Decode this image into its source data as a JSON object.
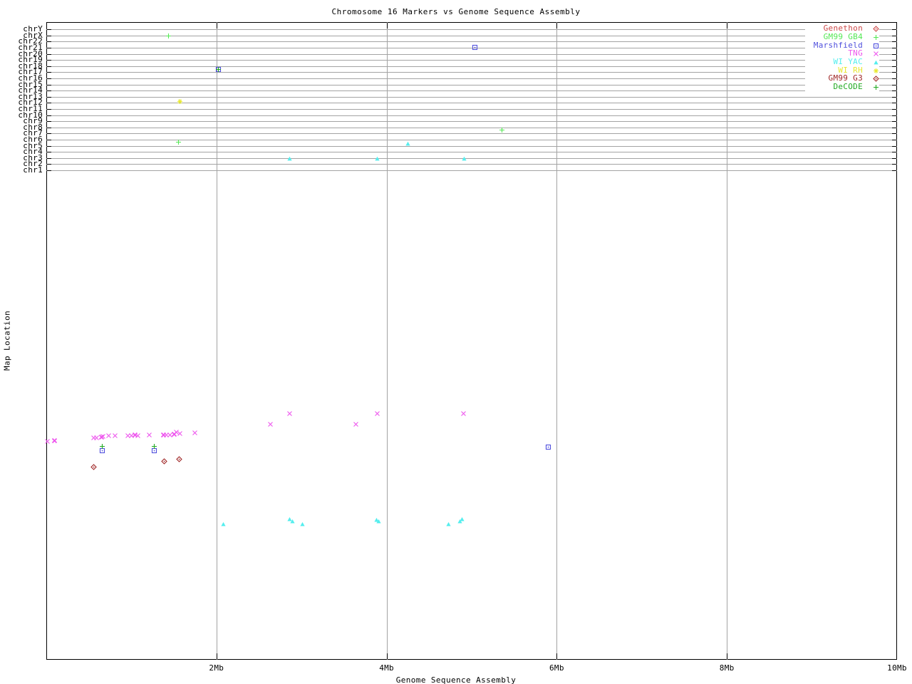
{
  "title": "Chromosome 16 Markers vs Genome Sequence Assembly",
  "x_axis": {
    "label": "Genome Sequence Assembly",
    "unit": "Mb",
    "range_mb": [
      0,
      10
    ],
    "ticks": [
      {
        "label": "2Mb",
        "mb": 2,
        "gridline": true
      },
      {
        "label": "4Mb",
        "mb": 4,
        "gridline": true
      },
      {
        "label": "6Mb",
        "mb": 6,
        "gridline": true
      },
      {
        "label": "8Mb",
        "mb": 8,
        "gridline": true
      },
      {
        "label": "10Mb",
        "mb": 10,
        "gridline": false
      }
    ]
  },
  "y_axis": {
    "label": "Map Location",
    "chromosomes": [
      "chrY",
      "chrX",
      "chr22",
      "chr21",
      "chr20",
      "chr19",
      "chr18",
      "chr17",
      "chr16",
      "chr15",
      "chr14",
      "chr13",
      "chr12",
      "chr11",
      "chr10",
      "chr9",
      "chr8",
      "chr7",
      "chr6",
      "chr5",
      "chr4",
      "chr3",
      "chr2",
      "chr1"
    ]
  },
  "chart_data": {
    "type": "scatter",
    "x_unit": "Mb",
    "x_range_mb": [
      0,
      10
    ],
    "note_y_encoding": "y_frac is fraction of plot height from top; top band rows are chromosome assignments",
    "series": [
      {
        "name": "Genethon",
        "symbol": "diamond-dot",
        "color": "#cc4848",
        "points": []
      },
      {
        "name": "GM99 GB4",
        "symbol": "plus",
        "color": "#55e855",
        "points": [
          {
            "x_mb": 1.44,
            "y_frac": 0.0212,
            "chrom": "chrX"
          },
          {
            "x_mb": 1.57,
            "y_frac": 0.124,
            "chrom": "chr12"
          },
          {
            "x_mb": 5.36,
            "y_frac": 0.1676,
            "chrom": "chr8"
          },
          {
            "x_mb": 1.55,
            "y_frac": 0.1866,
            "chrom": "chr6"
          }
        ]
      },
      {
        "name": "Marshfield",
        "symbol": "square-dot",
        "color": "#5050dd",
        "points": [
          {
            "x_mb": 5.04,
            "y_frac": 0.0391,
            "chrom": "chr21"
          },
          {
            "x_mb": 2.02,
            "y_frac": 0.0737,
            "chrom": "chr17"
          },
          {
            "x_mb": 0.66,
            "y_frac": 0.6704
          },
          {
            "x_mb": 1.27,
            "y_frac": 0.6704
          },
          {
            "x_mb": 5.9,
            "y_frac": 0.6652
          }
        ]
      },
      {
        "name": "TNG",
        "symbol": "x",
        "color": "#ee55ee",
        "points": [
          {
            "x_mb": 0.01,
            "y_frac": 0.6562
          },
          {
            "x_mb": 0.1,
            "y_frac": 0.6551,
            "bold": true
          },
          {
            "x_mb": 0.56,
            "y_frac": 0.6511
          },
          {
            "x_mb": 0.59,
            "y_frac": 0.6511
          },
          {
            "x_mb": 0.65,
            "y_frac": 0.6495,
            "bold": true
          },
          {
            "x_mb": 0.67,
            "y_frac": 0.6488
          },
          {
            "x_mb": 0.73,
            "y_frac": 0.6477
          },
          {
            "x_mb": 0.81,
            "y_frac": 0.6477
          },
          {
            "x_mb": 0.96,
            "y_frac": 0.6477
          },
          {
            "x_mb": 1.0,
            "y_frac": 0.6477
          },
          {
            "x_mb": 1.04,
            "y_frac": 0.6466,
            "bold": true
          },
          {
            "x_mb": 1.08,
            "y_frac": 0.6477
          },
          {
            "x_mb": 1.21,
            "y_frac": 0.6469
          },
          {
            "x_mb": 1.38,
            "y_frac": 0.6466,
            "bold": true
          },
          {
            "x_mb": 1.41,
            "y_frac": 0.6466
          },
          {
            "x_mb": 1.45,
            "y_frac": 0.6466
          },
          {
            "x_mb": 1.5,
            "y_frac": 0.6451,
            "bold": true
          },
          {
            "x_mb": 1.53,
            "y_frac": 0.6424
          },
          {
            "x_mb": 1.57,
            "y_frac": 0.6439
          },
          {
            "x_mb": 1.75,
            "y_frac": 0.6432
          },
          {
            "x_mb": 2.63,
            "y_frac": 0.6294
          },
          {
            "x_mb": 2.86,
            "y_frac": 0.6127
          },
          {
            "x_mb": 3.64,
            "y_frac": 0.6294
          },
          {
            "x_mb": 3.89,
            "y_frac": 0.6127
          },
          {
            "x_mb": 4.9,
            "y_frac": 0.6131
          }
        ]
      },
      {
        "name": "WI YAC",
        "symbol": "triangle",
        "color": "#55eeee",
        "points": [
          {
            "x_mb": 4.25,
            "y_frac": 0.1899,
            "chrom": "chr5"
          },
          {
            "x_mb": 2.86,
            "y_frac": 0.2131,
            "chrom": "chr3"
          },
          {
            "x_mb": 3.89,
            "y_frac": 0.2131,
            "chrom": "chr3"
          },
          {
            "x_mb": 4.91,
            "y_frac": 0.2131,
            "chrom": "chr3"
          },
          {
            "x_mb": 2.08,
            "y_frac": 0.7855
          },
          {
            "x_mb": 2.86,
            "y_frac": 0.7784
          },
          {
            "x_mb": 2.89,
            "y_frac": 0.7818
          },
          {
            "x_mb": 3.01,
            "y_frac": 0.7855
          },
          {
            "x_mb": 3.88,
            "y_frac": 0.7791
          },
          {
            "x_mb": 3.91,
            "y_frac": 0.7821
          },
          {
            "x_mb": 4.73,
            "y_frac": 0.7855
          },
          {
            "x_mb": 4.86,
            "y_frac": 0.7821
          },
          {
            "x_mb": 4.89,
            "y_frac": 0.7784
          }
        ]
      },
      {
        "name": "WI RH",
        "symbol": "asterisk",
        "color": "#e8e833",
        "points": [
          {
            "x_mb": 1.57,
            "y_frac": 0.124,
            "chrom": "chr12"
          }
        ]
      },
      {
        "name": "GM99 G3",
        "symbol": "diamond-dot",
        "color": "#a02828",
        "points": [
          {
            "x_mb": 0.56,
            "y_frac": 0.6972
          },
          {
            "x_mb": 1.39,
            "y_frac": 0.6879
          },
          {
            "x_mb": 1.56,
            "y_frac": 0.6842
          }
        ]
      },
      {
        "name": "DeCODE",
        "symbol": "plus",
        "color": "#22aa22",
        "points": [
          {
            "x_mb": 2.02,
            "y_frac": 0.0737,
            "chrom": "chr17"
          },
          {
            "x_mb": 0.66,
            "y_frac": 0.6648
          },
          {
            "x_mb": 1.27,
            "y_frac": 0.6648
          }
        ]
      }
    ]
  }
}
